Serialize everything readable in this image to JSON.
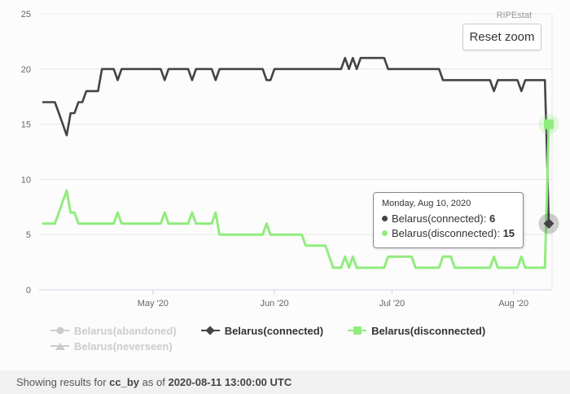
{
  "header": {
    "watermark": "RIPEstat",
    "reset_zoom_label": "Reset zoom"
  },
  "chart_data": {
    "type": "line",
    "title": "",
    "xlabel": "",
    "ylabel": "",
    "ylim": [
      0,
      25
    ],
    "grid": true,
    "legend_position": "bottom",
    "x_start_date": "2020-04-03",
    "x_end_date": "2020-08-10",
    "x_ticks": [
      {
        "label": "May '20",
        "day": 28
      },
      {
        "label": "Jun '20",
        "day": 59
      },
      {
        "label": "Jul '20",
        "day": 89
      },
      {
        "label": "Aug '20",
        "day": 120
      }
    ],
    "y_ticks": [
      0,
      5,
      10,
      15,
      20,
      25
    ],
    "series": [
      {
        "name": "Belarus(abandoned)",
        "visible": false,
        "color": "#cccccc",
        "marker": "circle",
        "values": []
      },
      {
        "name": "Belarus(connected)",
        "visible": true,
        "color": "#434348",
        "marker": "diamond",
        "values": [
          17,
          17,
          17,
          17,
          16,
          15,
          14,
          16,
          16,
          17,
          17,
          18,
          18,
          18,
          18,
          20,
          20,
          20,
          20,
          19,
          20,
          20,
          20,
          20,
          20,
          20,
          20,
          20,
          20,
          20,
          20,
          19,
          20,
          20,
          20,
          20,
          20,
          20,
          19,
          20,
          20,
          20,
          20,
          20,
          19,
          20,
          20,
          20,
          20,
          20,
          20,
          20,
          20,
          20,
          20,
          20,
          20,
          19,
          19,
          20,
          20,
          20,
          20,
          20,
          20,
          20,
          20,
          20,
          20,
          20,
          20,
          20,
          20,
          20,
          20,
          20,
          20,
          21,
          20,
          21,
          20,
          21,
          21,
          21,
          21,
          21,
          21,
          21,
          20,
          20,
          20,
          20,
          20,
          20,
          20,
          20,
          20,
          20,
          20,
          20,
          20,
          20,
          19,
          19,
          19,
          19,
          19,
          19,
          19,
          19,
          19,
          19,
          19,
          19,
          19,
          18,
          19,
          19,
          19,
          19,
          19,
          19,
          18,
          19,
          19,
          19,
          19,
          19,
          19,
          6
        ]
      },
      {
        "name": "Belarus(disconnected)",
        "visible": true,
        "color": "#90ed7d",
        "marker": "square",
        "values": [
          6,
          6,
          6,
          6,
          7,
          8,
          9,
          7,
          7,
          6,
          6,
          6,
          6,
          6,
          6,
          6,
          6,
          6,
          6,
          7,
          6,
          6,
          6,
          6,
          6,
          6,
          6,
          6,
          6,
          6,
          6,
          7,
          6,
          6,
          6,
          6,
          6,
          6,
          7,
          6,
          6,
          6,
          6,
          6,
          7,
          5,
          5,
          5,
          5,
          5,
          5,
          5,
          5,
          5,
          5,
          5,
          5,
          6,
          5,
          5,
          5,
          5,
          5,
          5,
          5,
          5,
          5,
          4,
          4,
          4,
          4,
          4,
          4,
          3,
          2,
          2,
          2,
          3,
          2,
          3,
          2,
          2,
          2,
          2,
          2,
          2,
          2,
          2,
          3,
          3,
          3,
          3,
          3,
          3,
          3,
          2,
          2,
          2,
          2,
          2,
          2,
          2,
          3,
          3,
          3,
          2,
          2,
          2,
          2,
          2,
          2,
          2,
          2,
          2,
          2,
          3,
          2,
          2,
          2,
          2,
          2,
          2,
          3,
          2,
          2,
          2,
          2,
          2,
          2,
          15
        ]
      },
      {
        "name": "Belarus(neverseen)",
        "visible": false,
        "color": "#cccccc",
        "marker": "triangle",
        "values": []
      }
    ]
  },
  "tooltip": {
    "title": "Monday, Aug 10, 2020",
    "rows": [
      {
        "label": "Belarus(connected): ",
        "value": "6",
        "color": "#434348"
      },
      {
        "label": "Belarus(disconnected): ",
        "value": "15",
        "color": "#90ed7d"
      }
    ]
  },
  "legend": {
    "items": [
      {
        "label": "Belarus(abandoned)",
        "enabled": false,
        "marker": "circle",
        "color": "#cccccc"
      },
      {
        "label": "Belarus(connected)",
        "enabled": true,
        "marker": "diamond",
        "color": "#434348"
      },
      {
        "label": "Belarus(disconnected)",
        "enabled": true,
        "marker": "square",
        "color": "#90ed7d"
      },
      {
        "label": "Belarus(neverseen)",
        "enabled": false,
        "marker": "triangle",
        "color": "#cccccc"
      }
    ]
  },
  "footer": {
    "prefix": "Showing results for ",
    "resource": "cc_by",
    "middle": " as of ",
    "timestamp": "2020-08-11 13:00:00 UTC"
  },
  "colors": {
    "grid": "#e7e7e7",
    "axis_line": "#ccd6eb",
    "tick_label": "#666666",
    "plot_border": "#e6e6e6"
  }
}
